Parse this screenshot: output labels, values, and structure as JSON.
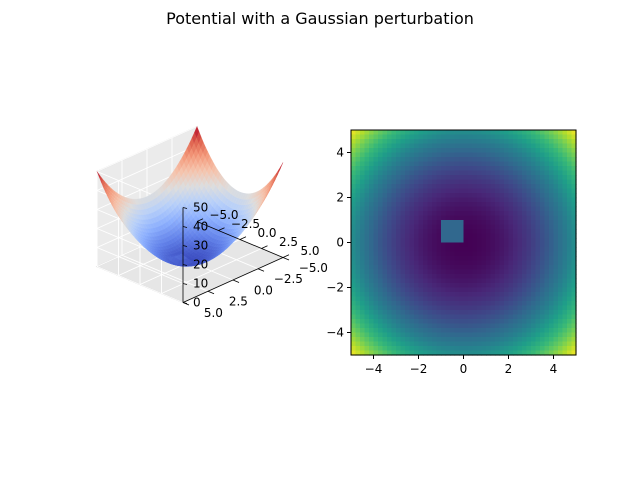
{
  "figure": {
    "title": "Potential with a Gaussian perturbation"
  },
  "chart_data": [
    {
      "type": "surface",
      "x_range": [
        -5,
        5
      ],
      "y_range": [
        -5,
        5
      ],
      "zlim": [
        0,
        50
      ],
      "x_ticks": [
        "−5.0",
        "−2.5",
        "0.0",
        "2.5",
        "5.0"
      ],
      "y_ticks": [
        "−5.0",
        "−2.5",
        "0.0",
        "2.5",
        "5.0"
      ],
      "z_ticks": [
        "0",
        "10",
        "20",
        "30",
        "40",
        "50"
      ],
      "colormap": "coolwarm",
      "function": "x^2 + y^2 with a small bump near (-0.5, 0.5)",
      "grid": true
    },
    {
      "type": "heatmap",
      "x_range": [
        -5,
        5
      ],
      "y_range": [
        -5,
        5
      ],
      "x_ticks": [
        "−4",
        "−2",
        "0",
        "2",
        "4"
      ],
      "y_ticks": [
        "−4",
        "−2",
        "0",
        "2",
        "4"
      ],
      "x_tick_values": [
        -4,
        -2,
        0,
        2,
        4
      ],
      "y_tick_values": [
        -4,
        -2,
        0,
        2,
        4
      ],
      "colormap": "viridis",
      "value_range": [
        0,
        50
      ],
      "perturbation": {
        "x": [
          -1,
          0
        ],
        "y": [
          0,
          1
        ],
        "color": "#31688e"
      }
    }
  ]
}
